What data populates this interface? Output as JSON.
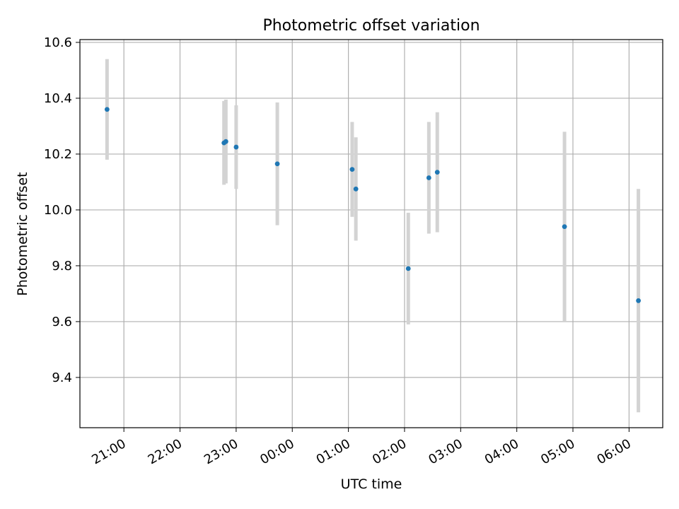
{
  "chart_data": {
    "type": "scatter",
    "title": "Photometric offset variation",
    "xlabel": "UTC time",
    "ylabel": "Photometric offset",
    "x_axis_kind": "time",
    "x_range": [
      "20:13",
      "06:36"
    ],
    "ylim": [
      9.22,
      10.61
    ],
    "x_ticks": [
      "21:00",
      "22:00",
      "23:00",
      "00:00",
      "01:00",
      "02:00",
      "03:00",
      "04:00",
      "05:00",
      "06:00"
    ],
    "y_ticks": [
      "9.4",
      "9.6",
      "9.8",
      "10.0",
      "10.2",
      "10.4",
      "10.6"
    ],
    "grid": true,
    "colors": {
      "point": "#1f77b4",
      "errorbar": "#d3d3d3",
      "grid": "#b0b0b0"
    },
    "points": [
      {
        "x": "20:42",
        "y": 10.36,
        "yerr": 0.18
      },
      {
        "x": "22:47",
        "y": 10.24,
        "yerr": 0.15
      },
      {
        "x": "22:49",
        "y": 10.245,
        "yerr": 0.15
      },
      {
        "x": "23:00",
        "y": 10.225,
        "yerr": 0.15
      },
      {
        "x": "23:44",
        "y": 10.165,
        "yerr": 0.22
      },
      {
        "x": "01:04",
        "y": 10.145,
        "yerr": 0.17
      },
      {
        "x": "01:08",
        "y": 10.075,
        "yerr": 0.185
      },
      {
        "x": "02:04",
        "y": 9.79,
        "yerr": 0.2
      },
      {
        "x": "02:26",
        "y": 10.115,
        "yerr": 0.2
      },
      {
        "x": "02:35",
        "y": 10.135,
        "yerr": 0.215
      },
      {
        "x": "04:51",
        "y": 9.94,
        "yerr": 0.34
      },
      {
        "x": "06:10",
        "y": 9.675,
        "yerr": 0.4
      }
    ]
  }
}
